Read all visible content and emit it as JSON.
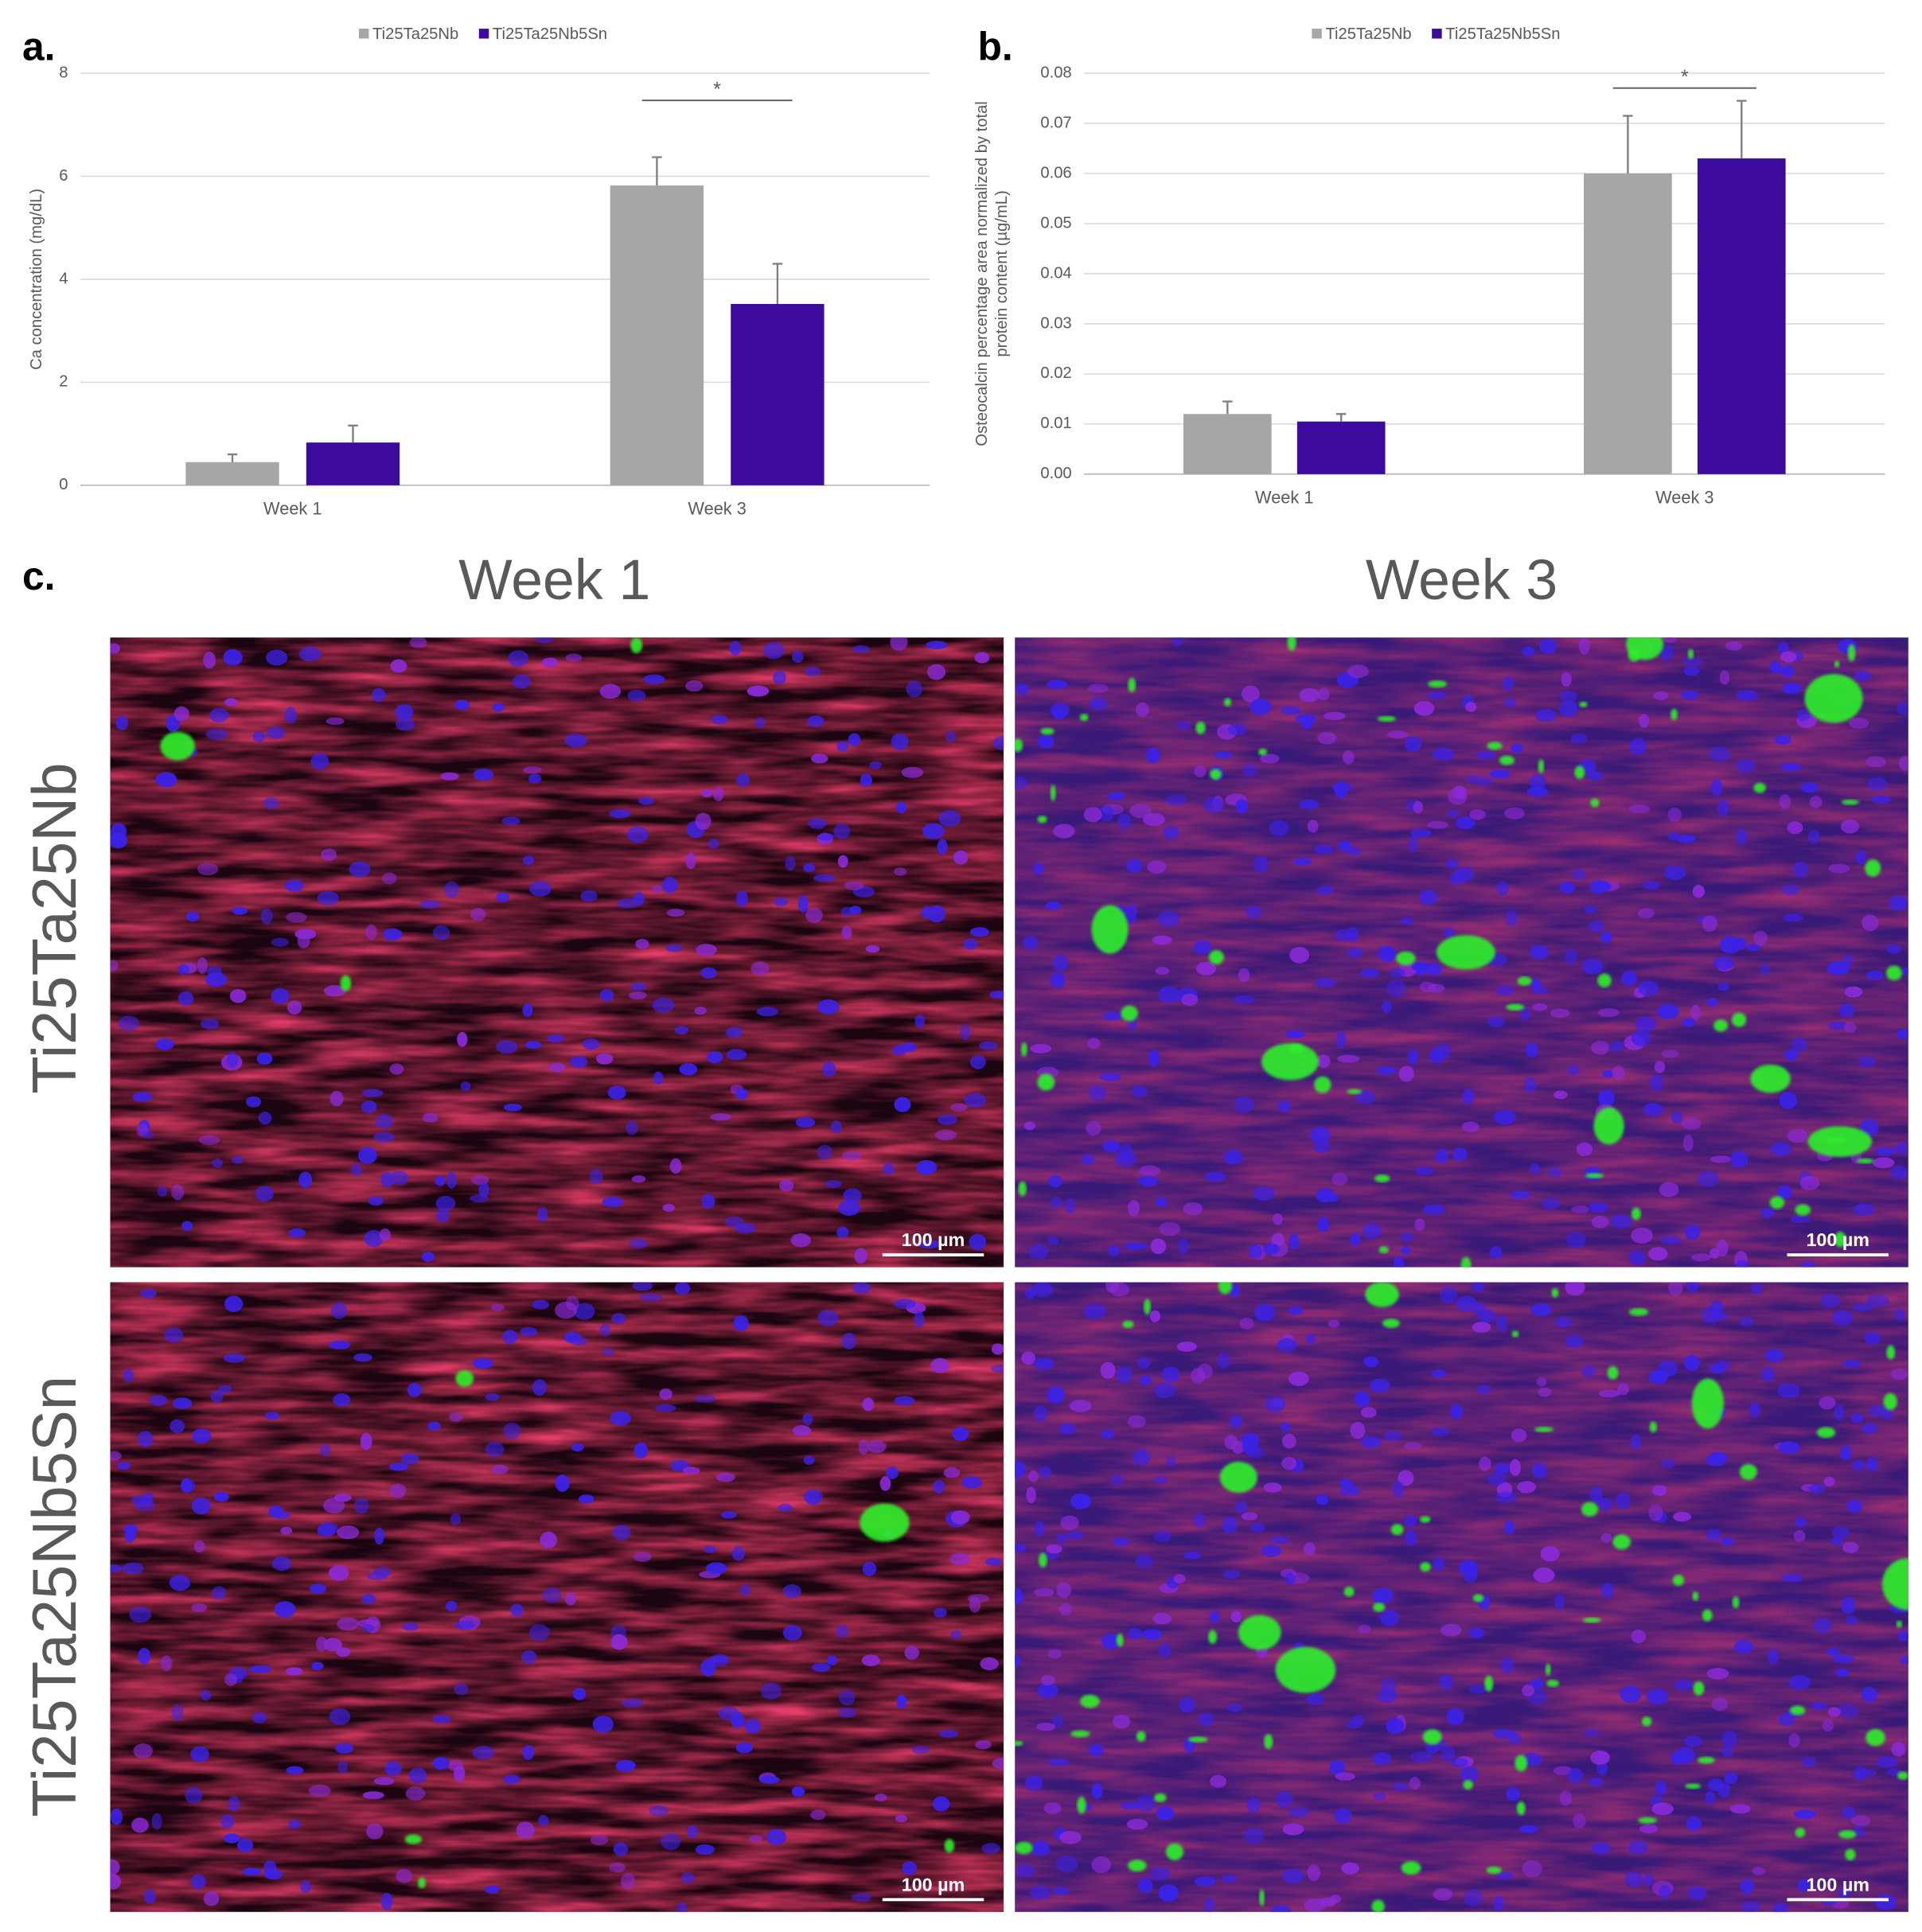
{
  "panel_labels": [
    "a.",
    "b.",
    "c."
  ],
  "chart_data": [
    {
      "type": "bar",
      "ylabel": [
        "Ca concentration (mg/dL)"
      ],
      "categories": [
        "Week 1",
        "Week 3"
      ],
      "series": [
        {
          "name": "Ti25Ta25Nb",
          "color": "#a6a6a6",
          "values": [
            0.45,
            5.82
          ],
          "errors": [
            0.15,
            0.55
          ]
        },
        {
          "name": "Ti25Ta25Nb5Sn",
          "color": "#3d0a9e",
          "values": [
            0.83,
            3.52
          ],
          "errors": [
            0.33,
            0.78
          ]
        }
      ],
      "ylim": [
        0,
        8
      ],
      "yticks": [
        0,
        2,
        4,
        6,
        8
      ],
      "grid": true,
      "legend": "top",
      "annotation": "*"
    },
    {
      "type": "bar",
      "ylabel": [
        "Osteocalcin percentage area normalized by total",
        "protein content (µg/mL)"
      ],
      "categories": [
        "Week 1",
        "Week 3"
      ],
      "series": [
        {
          "name": "Ti25Ta25Nb",
          "color": "#a6a6a6",
          "values": [
            0.012,
            0.06
          ],
          "errors": [
            0.0025,
            0.0115
          ]
        },
        {
          "name": "Ti25Ta25Nb5Sn",
          "color": "#3d0a9e",
          "values": [
            0.0105,
            0.063
          ],
          "errors": [
            0.0015,
            0.0115
          ]
        }
      ],
      "ylim": [
        0,
        0.08
      ],
      "yticks": [
        {
          "value": 0,
          "label": "0.00"
        },
        {
          "value": 0.01,
          "label": "0.01"
        },
        {
          "value": 0.02,
          "label": "0.02"
        },
        {
          "value": 0.03,
          "label": "0.03"
        },
        {
          "value": 0.04,
          "label": "0.04"
        },
        {
          "value": 0.05,
          "label": "0.05"
        },
        {
          "value": 0.06,
          "label": "0.06"
        },
        {
          "value": 0.07,
          "label": "0.07"
        },
        {
          "value": 0.08,
          "label": "0.08"
        }
      ],
      "grid": true,
      "legend": "top",
      "annotation": "*"
    }
  ],
  "micrographs": {
    "columns": [
      "Week 1",
      "Week 3"
    ],
    "rows": [
      "Ti25Ta25Nb",
      "Ti25Ta25Nb5Sn"
    ],
    "scale_bar": "100 µm"
  }
}
